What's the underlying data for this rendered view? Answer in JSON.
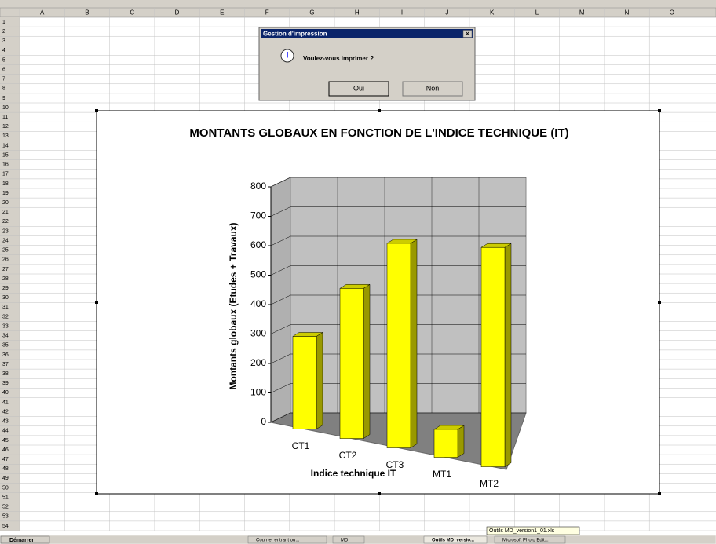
{
  "columns": [
    "A",
    "B",
    "C",
    "D",
    "E",
    "F",
    "G",
    "H",
    "I",
    "J",
    "K",
    "L",
    "M",
    "N",
    "O"
  ],
  "rows": [
    1,
    2,
    3,
    4,
    5,
    6,
    7,
    8,
    9,
    10,
    11,
    12,
    13,
    14,
    15,
    16,
    17,
    18,
    19,
    20,
    21,
    22,
    23,
    24,
    25,
    26,
    27,
    28,
    29,
    30,
    31,
    32,
    33,
    34,
    35,
    36,
    37,
    38,
    39,
    40,
    41,
    42,
    43,
    44,
    45,
    46,
    47,
    48,
    49,
    50,
    51,
    52,
    53,
    54
  ],
  "dialog": {
    "title": "Gestion d'impression",
    "message": "Voulez-vous imprimer ?",
    "buttons": [
      "Oui",
      "Non"
    ]
  },
  "chart_data": {
    "type": "bar3d",
    "title": "MONTANTS GLOBAUX EN FONCTION DE L'INDICE TECHNIQUE (IT)",
    "y_label": "Montants globaux (Etudes + Travaux)",
    "x_label": "Indice technique IT",
    "categories": [
      "CT1",
      "CT2",
      "CT3",
      "MT1",
      "MT2"
    ],
    "values": [
      315,
      510,
      695,
      95,
      745
    ],
    "color": "#ffff00",
    "ylim": [
      0,
      800
    ],
    "yticks": [
      0,
      100,
      200,
      300,
      400,
      500,
      600,
      700,
      800
    ],
    "grid": true
  },
  "taskbar": {
    "start": "Démarrer",
    "items": [
      "Courrier entrant ou...",
      "MD",
      "Outils MD_versio...",
      "Microsoft Photo Edit..."
    ],
    "tooltip": "Outils MD_version1_01.xls"
  }
}
